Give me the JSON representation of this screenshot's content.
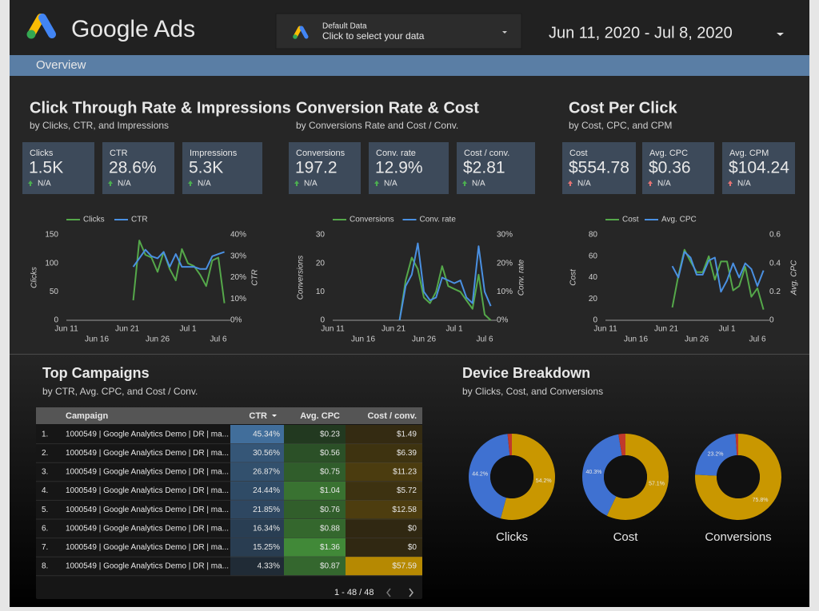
{
  "header": {
    "title": "Google Ads",
    "data_selector": {
      "name": "Default Data",
      "hint": "Click to select your data"
    },
    "date_range": "Jun 11, 2020 - Jul 8, 2020"
  },
  "nav": {
    "tab": "Overview"
  },
  "sections": [
    {
      "title": "Click Through Rate & Impressions",
      "subtitle": "by Clicks, CTR, and Impressions",
      "kpis": [
        {
          "label": "Clicks",
          "value": "1.5K",
          "change": "N/A"
        },
        {
          "label": "CTR",
          "value": "28.6%",
          "change": "N/A"
        },
        {
          "label": "Impressions",
          "value": "5.3K",
          "change": "N/A"
        }
      ],
      "chart": {
        "type": "line",
        "ylabel": "Clicks",
        "y2label": "CTR",
        "categories": [
          "Jun 11",
          null,
          null,
          null,
          null,
          "Jun 16",
          null,
          null,
          null,
          null,
          "Jun 21",
          null,
          null,
          null,
          null,
          "Jun 26",
          null,
          null,
          null,
          null,
          "Jul 1",
          null,
          null,
          null,
          null,
          "Jul 6",
          null,
          null
        ],
        "ylim": [
          0,
          150
        ],
        "yticks": [
          0,
          50,
          100,
          150
        ],
        "y2lim": [
          0,
          40
        ],
        "y2ticks": [
          {
            "value": 0,
            "label": "0%"
          },
          {
            "value": 10,
            "label": "10%"
          },
          {
            "value": 20,
            "label": "20%"
          },
          {
            "value": 30,
            "label": "30%"
          },
          {
            "value": 40,
            "label": "40%"
          }
        ],
        "series": [
          {
            "name": "Clicks",
            "color": "#55a84a",
            "values": [
              null,
              null,
              null,
              null,
              null,
              null,
              null,
              null,
              null,
              null,
              null,
              35,
              140,
              115,
              110,
              85,
              120,
              90,
              70,
              125,
              100,
              95,
              80,
              60,
              105,
              110,
              30,
              null
            ]
          },
          {
            "name": "CTR",
            "color": "#4a90e2",
            "axis": "y2",
            "values": [
              null,
              null,
              null,
              null,
              null,
              null,
              null,
              null,
              null,
              null,
              null,
              25,
              29,
              33,
              30,
              29,
              32,
              25,
              31,
              25,
              25,
              25,
              24,
              24,
              30,
              31,
              32,
              null
            ]
          }
        ]
      }
    },
    {
      "title": "Conversion Rate & Cost",
      "subtitle": "by Conversions Rate and Cost / Conv.",
      "kpis": [
        {
          "label": "Conversions",
          "value": "197.2",
          "change": "N/A"
        },
        {
          "label": "Conv. rate",
          "value": "12.9%",
          "change": "N/A"
        },
        {
          "label": "Cost / conv.",
          "value": "$2.81",
          "change": "N/A"
        }
      ],
      "chart": {
        "type": "line",
        "ylabel": "Conversions",
        "y2label": "Conv. rate",
        "categories": [
          "Jun 11",
          null,
          null,
          null,
          null,
          "Jun 16",
          null,
          null,
          null,
          null,
          "Jun 21",
          null,
          null,
          null,
          null,
          "Jun 26",
          null,
          null,
          null,
          null,
          "Jul 1",
          null,
          null,
          null,
          null,
          "Jul 6",
          null,
          null
        ],
        "ylim": [
          0,
          30
        ],
        "yticks": [
          0,
          10,
          20,
          30
        ],
        "y2lim": [
          0,
          30
        ],
        "y2ticks": [
          {
            "value": 0,
            "label": "0%"
          },
          {
            "value": 10,
            "label": "10%"
          },
          {
            "value": 20,
            "label": "20%"
          },
          {
            "value": 30,
            "label": "30%"
          }
        ],
        "series": [
          {
            "name": "Conversions",
            "color": "#55a84a",
            "values": [
              null,
              null,
              null,
              null,
              null,
              null,
              null,
              null,
              null,
              null,
              null,
              0,
              14,
              22,
              18,
              8,
              6,
              10,
              19,
              12,
              11,
              10,
              7,
              4,
              16,
              2,
              0,
              null
            ]
          },
          {
            "name": "Conv. rate",
            "color": "#4a90e2",
            "axis": "y2",
            "values": [
              null,
              null,
              null,
              null,
              null,
              null,
              null,
              null,
              null,
              null,
              null,
              0,
              12,
              16,
              27,
              10,
              7,
              8,
              15,
              14,
              13,
              14,
              8,
              6,
              26,
              10,
              5,
              null
            ]
          }
        ]
      }
    },
    {
      "title": "Cost Per Click",
      "subtitle": "by Cost, CPC, and CPM",
      "kpis": [
        {
          "label": "Cost",
          "value": "$554.78",
          "change": "N/A"
        },
        {
          "label": "Avg. CPC",
          "value": "$0.36",
          "change": "N/A"
        },
        {
          "label": "Avg. CPM",
          "value": "$104.24",
          "change": "N/A"
        }
      ],
      "chart": {
        "type": "line",
        "ylabel": "Cost",
        "y2label": "Avg. CPC",
        "categories": [
          "Jun 11",
          null,
          null,
          null,
          null,
          "Jun 16",
          null,
          null,
          null,
          null,
          "Jun 21",
          null,
          null,
          null,
          null,
          "Jun 26",
          null,
          null,
          null,
          null,
          "Jul 1",
          null,
          null,
          null,
          null,
          "Jul 6",
          null,
          null
        ],
        "ylim": [
          0,
          80
        ],
        "yticks": [
          0,
          20,
          40,
          60,
          80
        ],
        "y2lim": [
          0,
          0.6
        ],
        "y2ticks": [
          0,
          0.2,
          0.4,
          0.6
        ],
        "series": [
          {
            "name": "Cost",
            "color": "#55a84a",
            "values": [
              null,
              null,
              null,
              null,
              null,
              null,
              null,
              null,
              null,
              null,
              null,
              12,
              42,
              66,
              55,
              45,
              45,
              60,
              38,
              55,
              55,
              28,
              32,
              50,
              22,
              30,
              10,
              null
            ]
          },
          {
            "name": "Avg. CPC",
            "color": "#4a90e2",
            "axis": "y2",
            "values": [
              null,
              null,
              null,
              null,
              null,
              null,
              null,
              null,
              null,
              null,
              null,
              0.38,
              0.3,
              0.48,
              0.44,
              0.32,
              0.32,
              0.42,
              0.44,
              0.2,
              0.28,
              0.4,
              0.3,
              0.4,
              0.36,
              0.24,
              0.35,
              null
            ]
          }
        ]
      }
    }
  ],
  "table": {
    "title": "Top Campaigns",
    "subtitle": "by CTR, Avg. CPC, and Cost / Conv.",
    "columns": [
      "Campaign",
      "CTR",
      "Avg. CPC",
      "Cost / conv."
    ],
    "rows": [
      [
        "1.",
        "1000549 | Google Analytics Demo | DR | ma...",
        "45.34%",
        "$0.23",
        "$1.49"
      ],
      [
        "2.",
        "1000549 | Google Analytics Demo | DR | ma...",
        "30.56%",
        "$0.56",
        "$6.39"
      ],
      [
        "3.",
        "1000549 | Google Analytics Demo | DR | ma...",
        "26.87%",
        "$0.75",
        "$11.23"
      ],
      [
        "4.",
        "1000549 | Google Analytics Demo | DR | ma...",
        "24.44%",
        "$1.04",
        "$5.72"
      ],
      [
        "5.",
        "1000549 | Google Analytics Demo | DR | ma...",
        "21.85%",
        "$0.76",
        "$12.58"
      ],
      [
        "6.",
        "1000549 | Google Analytics Demo | DR | ma...",
        "16.34%",
        "$0.88",
        "$0"
      ],
      [
        "7.",
        "1000549 | Google Analytics Demo | DR | ma...",
        "15.25%",
        "$1.36",
        "$0"
      ],
      [
        "8.",
        "1000549 | Google Analytics Demo | DR | ma...",
        "4.33%",
        "$0.87",
        "$57.59"
      ]
    ],
    "pagination": "1 - 48 / 48"
  },
  "device": {
    "title": "Device Breakdown",
    "subtitle": "by Clicks, Cost, and Conversions",
    "colors": [
      "#c99700",
      "#3f71d1",
      "#c0392b"
    ],
    "donuts": [
      {
        "label": "Clicks",
        "values": [
          54.2,
          44.2,
          1.6
        ],
        "value_labels": [
          "54.2%",
          "44.2%",
          null
        ]
      },
      {
        "label": "Cost",
        "values": [
          57.1,
          40.3,
          2.6
        ],
        "value_labels": [
          "57.1%",
          "40.3%",
          null
        ]
      },
      {
        "label": "Conversions",
        "values": [
          75.8,
          23.2,
          1.0
        ],
        "value_labels": [
          "75.8%",
          "23.2%",
          null
        ]
      }
    ]
  }
}
